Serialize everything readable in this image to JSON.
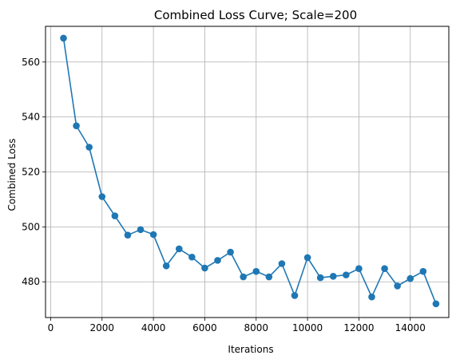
{
  "chart_data": {
    "type": "line",
    "title": "Combined Loss Curve; Scale=200",
    "xlabel": "Iterations",
    "ylabel": "Combined Loss",
    "xlim": [
      -200,
      15500
    ],
    "ylim": [
      467,
      573
    ],
    "xticks": [
      0,
      2000,
      4000,
      6000,
      8000,
      10000,
      12000,
      14000
    ],
    "yticks": [
      480,
      500,
      520,
      540,
      560
    ],
    "grid": true,
    "marker": "circle",
    "series": [
      {
        "color": "#1f77b4",
        "x": [
          500,
          1000,
          1500,
          2000,
          2500,
          3000,
          3500,
          4000,
          4500,
          5000,
          5500,
          6000,
          6500,
          7000,
          7500,
          8000,
          8500,
          9000,
          9500,
          10000,
          10500,
          11000,
          11500,
          12000,
          12500,
          13000,
          13500,
          14000,
          14500,
          15000
        ],
        "y": [
          568.7,
          536.8,
          529.0,
          511.0,
          504.0,
          497.0,
          499.0,
          497.2,
          485.8,
          492.0,
          489.0,
          485.0,
          487.8,
          490.8,
          481.8,
          483.8,
          481.8,
          486.6,
          475.0,
          488.8,
          481.5,
          482.0,
          482.5,
          484.8,
          474.5,
          484.8,
          478.5,
          481.2,
          483.8,
          472.0
        ]
      }
    ]
  }
}
